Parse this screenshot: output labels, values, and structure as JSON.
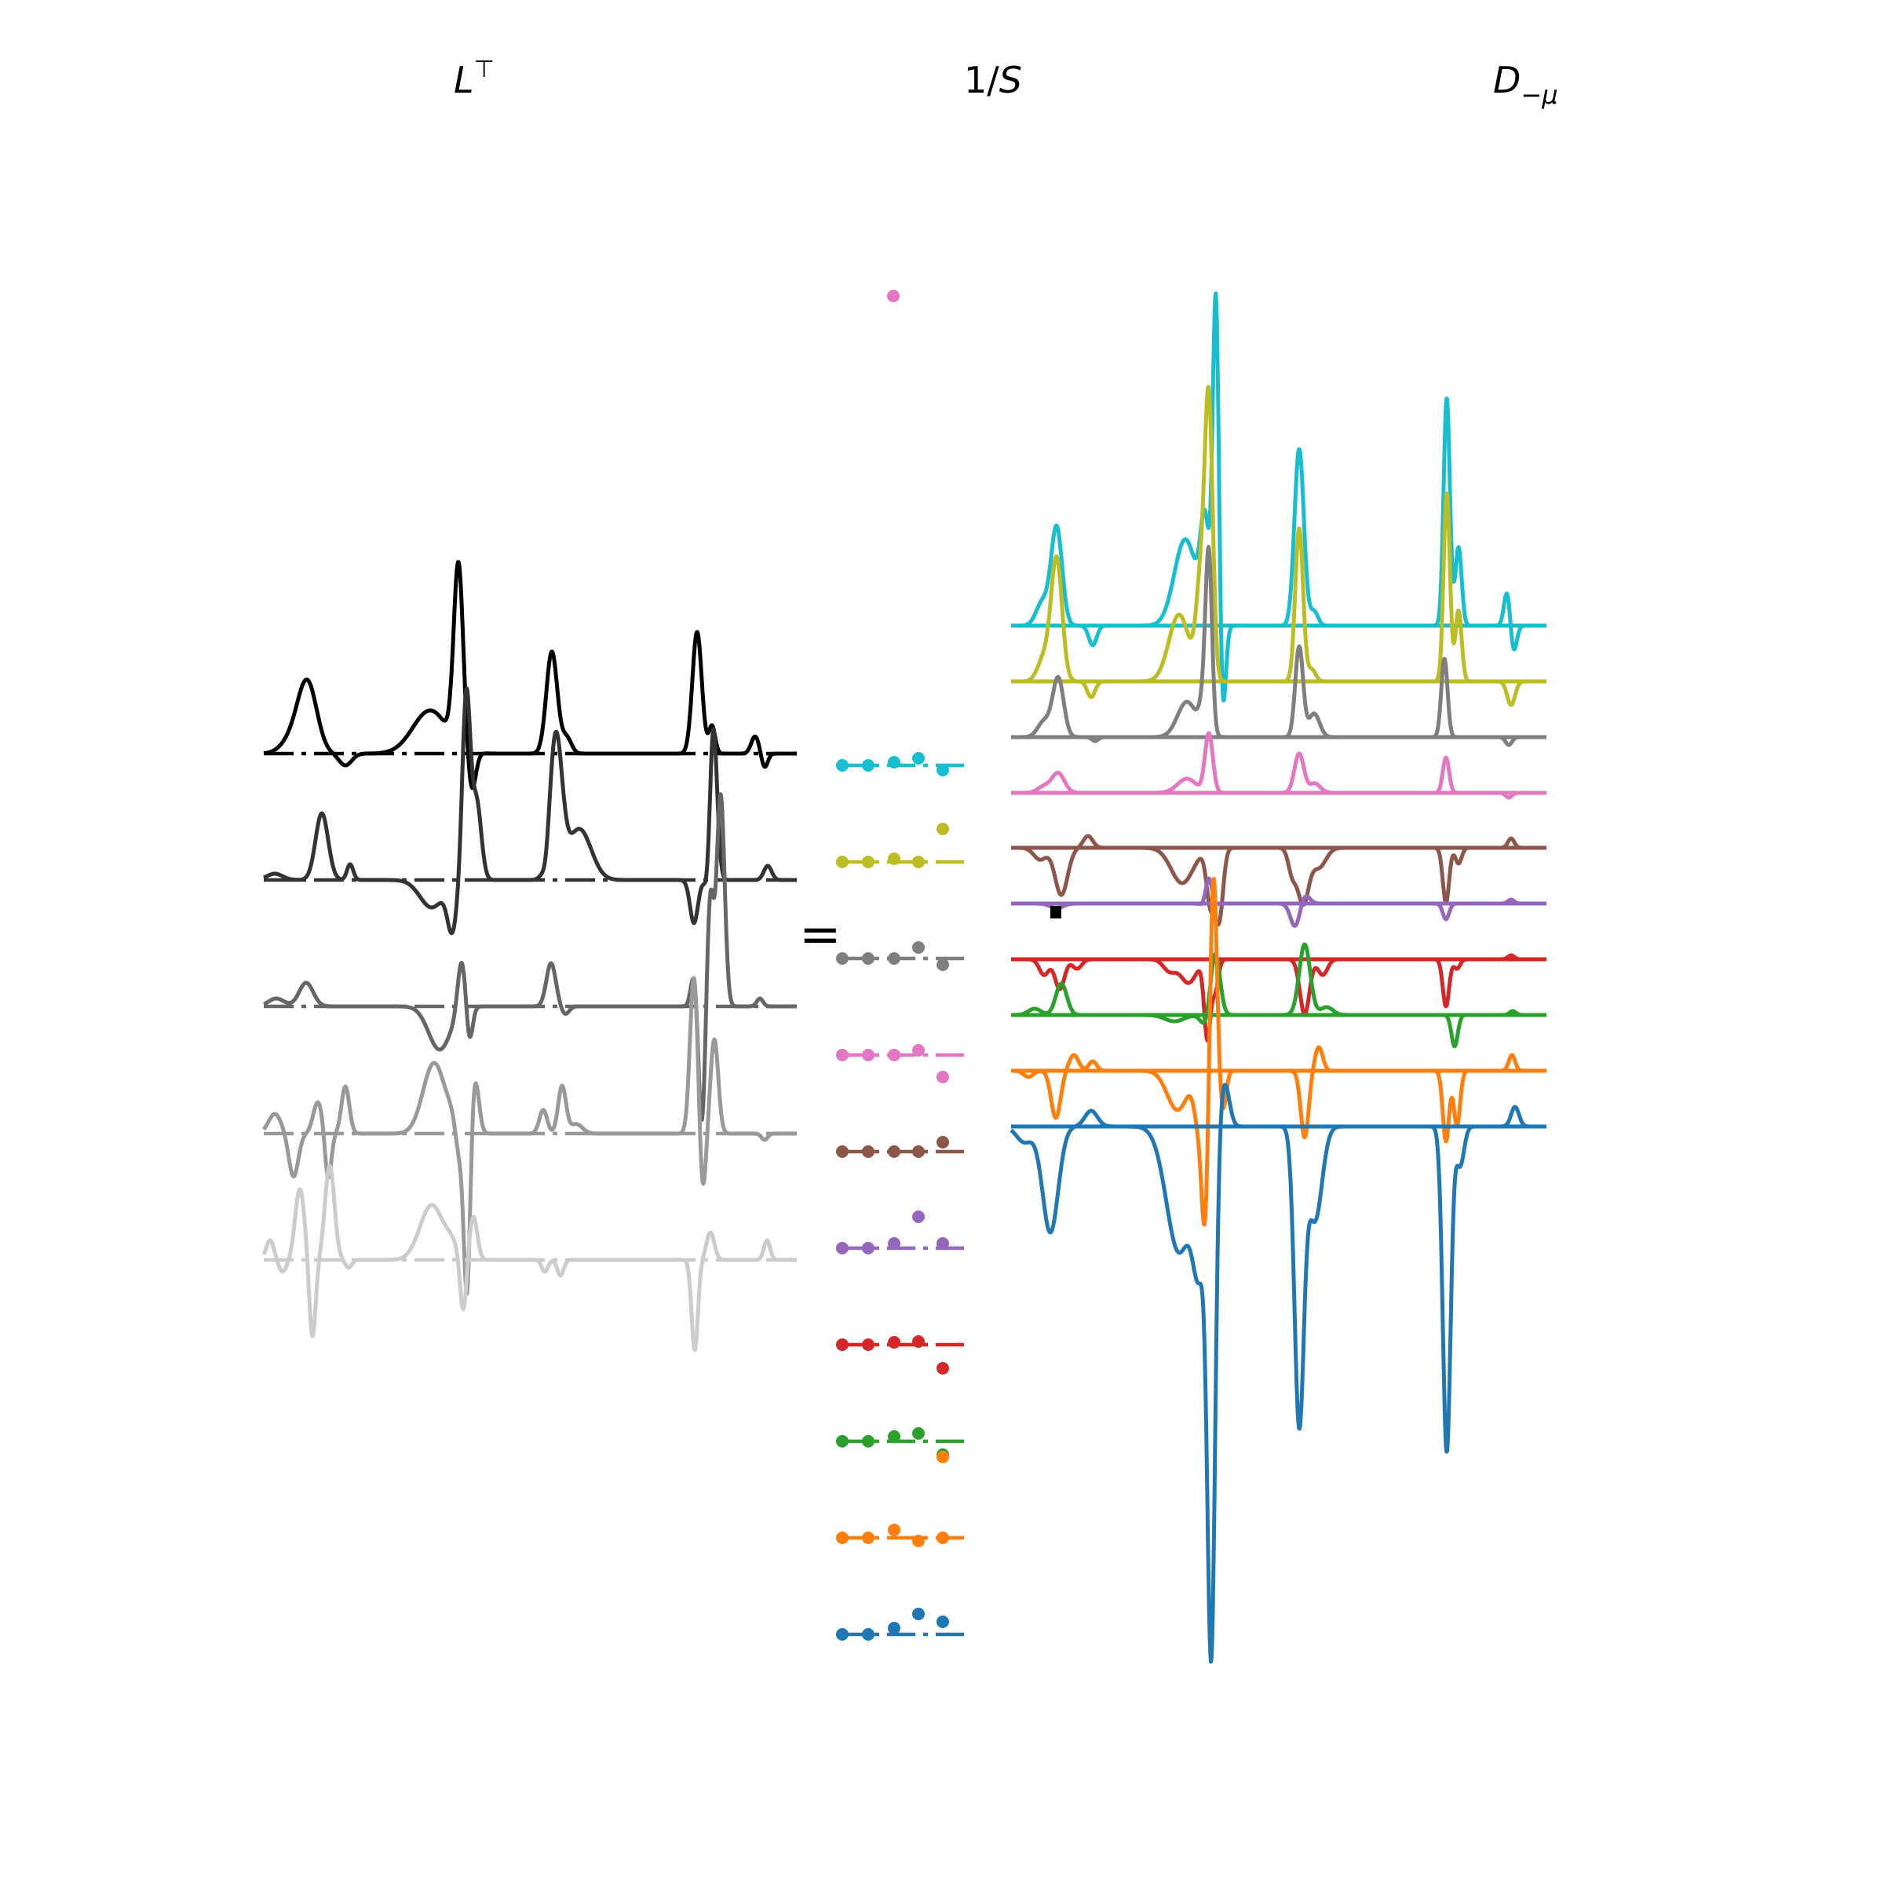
{
  "titles": {
    "left": {
      "base": "L",
      "sup": "⊤"
    },
    "middle": {
      "prefix": "1/",
      "var": "S"
    },
    "right": {
      "base": "D",
      "sub": "−μ"
    }
  },
  "operator": "=",
  "left_panel": {
    "curves": [
      {
        "color": "#000000"
      },
      {
        "color": "#333333"
      },
      {
        "color": "#666666"
      },
      {
        "color": "#999999"
      },
      {
        "color": "#cccccc"
      }
    ]
  },
  "middle_panel": {
    "rows": [
      {
        "color": "#17becf"
      },
      {
        "color": "#bcbd22"
      },
      {
        "color": "#7f7f7f"
      },
      {
        "color": "#e377c2"
      },
      {
        "color": "#8c564b"
      },
      {
        "color": "#9467bd"
      },
      {
        "color": "#d62728"
      },
      {
        "color": "#2ca02c"
      },
      {
        "color": "#ff7f0e"
      },
      {
        "color": "#1f77b4"
      }
    ]
  },
  "right_panel": {
    "curves": [
      {
        "color": "#17becf"
      },
      {
        "color": "#bcbd22"
      },
      {
        "color": "#7f7f7f"
      },
      {
        "color": "#e377c2"
      },
      {
        "color": "#8c564b"
      },
      {
        "color": "#9467bd"
      },
      {
        "color": "#d62728"
      },
      {
        "color": "#2ca02c"
      },
      {
        "color": "#ff7f0e"
      },
      {
        "color": "#1f77b4"
      }
    ]
  }
}
